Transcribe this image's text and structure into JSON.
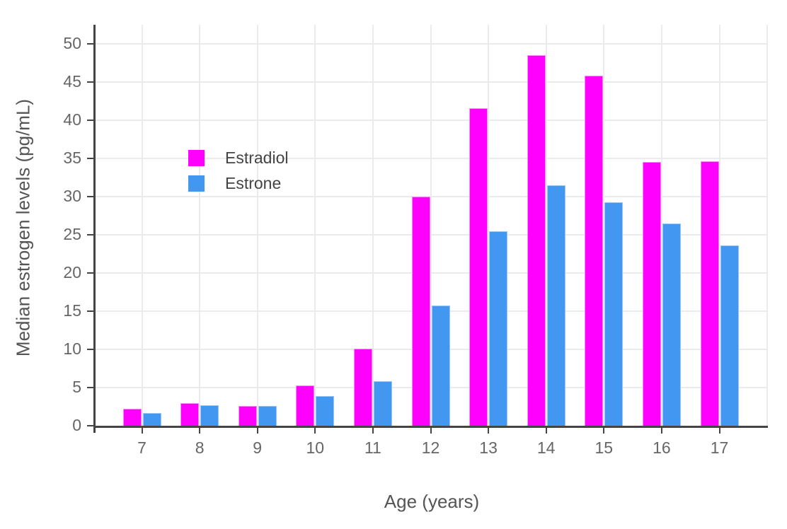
{
  "chart_data": {
    "type": "bar",
    "title": "",
    "xlabel": "Age (years)",
    "ylabel": "Median estrogen levels (pg/mL)",
    "categories": [
      "7",
      "8",
      "9",
      "10",
      "11",
      "12",
      "13",
      "14",
      "15",
      "16",
      "17"
    ],
    "series": [
      {
        "name": "Estradiol",
        "color": "#FF00FF",
        "edge_color": "#FF8BF8",
        "values": [
          2.2,
          3.0,
          2.6,
          5.3,
          10.1,
          30.0,
          41.6,
          48.5,
          45.8,
          34.5,
          34.6
        ]
      },
      {
        "name": "Estrone",
        "color": "#4298F0",
        "edge_color": "#9CC6F7",
        "values": [
          1.7,
          2.7,
          2.6,
          3.9,
          5.8,
          15.7,
          25.5,
          31.5,
          29.3,
          26.5,
          23.6
        ]
      }
    ],
    "ylim": [
      0,
      50
    ],
    "ytick_step": 5,
    "y_tick_labels": [
      "0",
      "5",
      "10",
      "15",
      "20",
      "25",
      "30",
      "35",
      "40",
      "45",
      "50"
    ],
    "x_tick_labels": [
      "7",
      "8",
      "9",
      "10",
      "11",
      "12",
      "13",
      "14",
      "15",
      "16",
      "17"
    ],
    "grid": true,
    "legend_position": "inside-top-left",
    "legend_entries": [
      "Estradiol",
      "Estrone"
    ]
  },
  "colors": {
    "background": "#ffffff",
    "axis_line": "#444444",
    "gridline": "#ebebeb",
    "tick_label": "#666666",
    "axis_title": "#555555",
    "legend_text": "#444444"
  }
}
